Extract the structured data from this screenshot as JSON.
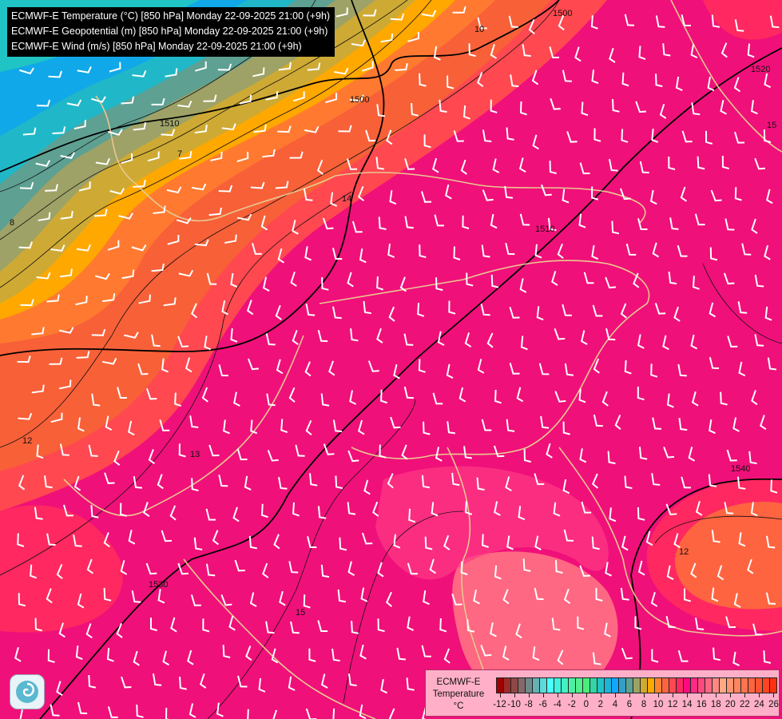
{
  "header": {
    "lines": [
      "ECMWF-E Temperature (°C) [850 hPa] Monday 22-09-2025 21:00 (+9h)",
      "ECMWF-E Geopotential (m) [850 hPa] Monday 22-09-2025 21:00 (+9h)",
      "ECMWF-E Wind (m/s) [850 hPa] Monday 22-09-2025 21:00 (+9h)"
    ]
  },
  "legend": {
    "title_lines": [
      "ECMWF-E",
      "Temperature",
      "°C"
    ],
    "min": -12,
    "max": 26,
    "tick_labels": [
      "-12",
      "-10",
      "-8",
      "-6",
      "-4",
      "-2",
      "0",
      "2",
      "4",
      "6",
      "8",
      "10",
      "12",
      "14",
      "16",
      "18",
      "20",
      "22",
      "24",
      "26"
    ],
    "colors": [
      "#a00000",
      "#a02a2a",
      "#8e4848",
      "#866868",
      "#6e8a8a",
      "#66b2b2",
      "#5cdada",
      "#4cffff",
      "#44f0de",
      "#44f0c4",
      "#4cf0a4",
      "#50f08c",
      "#4cec7c",
      "#34d4a4",
      "#20c4c4",
      "#1cb4d8",
      "#10a8ff",
      "#34a0c8",
      "#5ea092",
      "#9ea266",
      "#ceaa34",
      "#ffa800",
      "#ff8430",
      "#ff6440",
      "#ff4850",
      "#ff2860",
      "#ff0a80",
      "#ff2a84",
      "#ff4880",
      "#ff6882",
      "#ff8884",
      "#ffa884",
      "#ff9470",
      "#ff8460",
      "#ff7450",
      "#ff6440",
      "#ff5430",
      "#ff4420",
      "#ff3010"
    ]
  },
  "map": {
    "contour_labels": [
      "1500",
      "1500",
      "1510",
      "1520",
      "1530",
      "1540",
      "1510",
      "7",
      "8",
      "10",
      "12",
      "12",
      "13",
      "14",
      "15",
      "15"
    ],
    "logo": "ECMWF logo"
  }
}
